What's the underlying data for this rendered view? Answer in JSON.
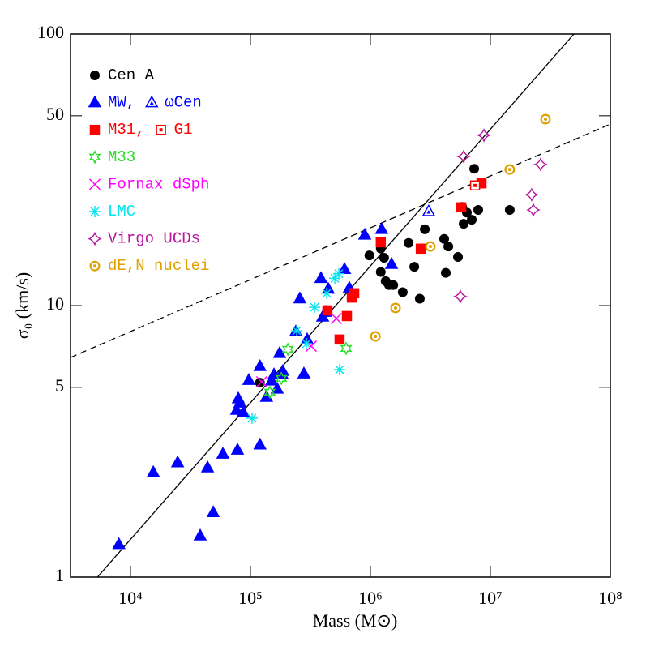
{
  "chart_data": {
    "type": "scatter",
    "xlabel": "Mass (M⊙)",
    "ylabel": "σ₀ (km/s)",
    "xscale": "log",
    "yscale": "log",
    "xlim": [
      3162,
      100000000
    ],
    "ylim": [
      1,
      100
    ],
    "xticks": [
      {
        "value": 10000,
        "label": "10⁴"
      },
      {
        "value": 100000,
        "label": "10⁵"
      },
      {
        "value": 1000000,
        "label": "10⁶"
      },
      {
        "value": 10000000,
        "label": "10⁷"
      },
      {
        "value": 100000000,
        "label": "10⁸"
      }
    ],
    "yticks": [
      1,
      5,
      10,
      50,
      100
    ],
    "lines": [
      {
        "style": "solid",
        "color": "#000000",
        "x": [
          5300,
          49700000
        ],
        "y": [
          1,
          100
        ]
      },
      {
        "style": "dashed",
        "color": "#000000",
        "x": [
          3162,
          100000000
        ],
        "y": [
          6.44,
          46.6
        ]
      }
    ],
    "series": [
      {
        "name": "Cen A",
        "color": "#000000",
        "marker": "circle",
        "x": [
          120000,
          980000,
          1220000,
          1300000,
          1220000,
          1340000,
          1430000,
          1550000,
          1860000,
          2080000,
          2320000,
          2580000,
          2840000,
          4120000,
          4250000,
          4460000,
          5370000,
          5810000,
          5990000,
          6370000,
          7000000,
          7330000,
          7920000,
          14500000
        ],
        "values": [
          5.2,
          15.3,
          16.2,
          15.0,
          13.3,
          12.3,
          11.9,
          11.9,
          11.2,
          17.0,
          13.9,
          10.6,
          19.1,
          17.6,
          13.2,
          16.5,
          15.1,
          23.1,
          20.0,
          22.0,
          20.7,
          31.9,
          22.5,
          22.5
        ]
      },
      {
        "name": "MW,",
        "color": "#0000ff",
        "marker": "triangle",
        "x": [
          8000,
          15500,
          24700,
          43900,
          38100,
          48900,
          58900,
          78000,
          76700,
          81700,
          79200,
          87000,
          97000,
          120000,
          136000,
          150000,
          157000,
          167000,
          175000,
          184000,
          186000,
          239000,
          279000,
          258000,
          297000,
          387000,
          400000,
          424000,
          445000,
          608000,
          667000,
          897000,
          1240000,
          1500000,
          120000
        ],
        "values": [
          1.32,
          2.43,
          2.64,
          2.53,
          1.42,
          1.73,
          2.84,
          2.94,
          4.12,
          4.38,
          4.54,
          4.04,
          5.31,
          5.97,
          4.6,
          5.28,
          5.57,
          4.93,
          6.67,
          5.57,
          5.73,
          8.02,
          5.61,
          10.6,
          7.5,
          12.6,
          9.08,
          9.46,
          11.5,
          13.6,
          11.6,
          18.2,
          19.1,
          14.2,
          3.07
        ]
      },
      {
        "name": "ωCen",
        "color": "#0000ff",
        "marker": "open-triangle",
        "x": [
          3060000
        ],
        "values": [
          22.2
        ]
      },
      {
        "name": "M31,",
        "color": "#ff0000",
        "marker": "square",
        "x": [
          438000,
          637000,
          700000,
          733000,
          553000,
          1220000,
          2630000,
          5720000,
          8430000
        ],
        "values": [
          9.6,
          9.15,
          10.7,
          11.1,
          7.5,
          17.1,
          16.2,
          23.0,
          28.2
        ]
      },
      {
        "name": "G1",
        "color": "#ff0000",
        "marker": "open-square",
        "x": [
          7450000
        ],
        "values": [
          27.7
        ]
      },
      {
        "name": "M33",
        "color": "#22dd22",
        "marker": "star",
        "x": [
          145000,
          181000,
          205000,
          627000
        ],
        "values": [
          4.8,
          5.39,
          6.9,
          6.95
        ]
      },
      {
        "name": "Fornax dSph",
        "color": "#ff00ff",
        "marker": "x",
        "x": [
          124000,
          321000,
          520000
        ],
        "values": [
          5.24,
          7.09,
          8.96
        ]
      },
      {
        "name": "LMC",
        "color": "#00e5ee",
        "marker": "asterisk",
        "x": [
          103000,
          243000,
          293000,
          342000,
          432000,
          505000,
          545000,
          553000
        ],
        "values": [
          3.85,
          8.08,
          7.24,
          9.86,
          11.1,
          12.6,
          13.1,
          5.81
        ]
      },
      {
        "name": "Virgo UCDs",
        "color": "#b5179e",
        "marker": "concave-star",
        "x": [
          8830000,
          5990000,
          5620000,
          22800000,
          22100000,
          26200000
        ],
        "values": [
          42.4,
          35.4,
          10.8,
          22.5,
          25.6,
          33.1
        ]
      },
      {
        "name": "dE,N nuclei",
        "color": "#e0a000",
        "marker": "ring",
        "x": [
          28800000,
          14500000,
          3160000,
          1620000,
          1100000
        ],
        "values": [
          48.6,
          31.7,
          16.5,
          9.8,
          7.7
        ]
      }
    ]
  }
}
